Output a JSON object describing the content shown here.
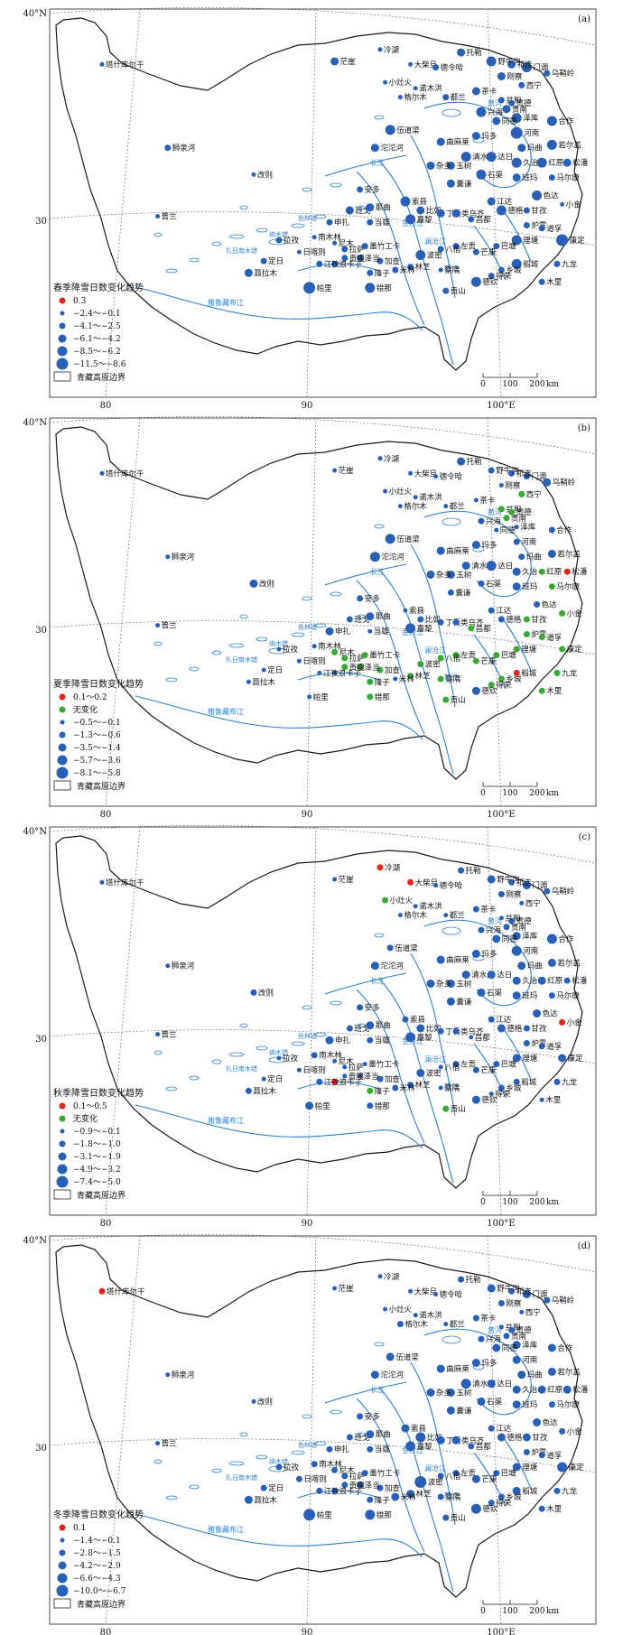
{
  "boundary_legend": "青藏高原边界",
  "scalebar": {
    "ticks": [
      "0",
      "100",
      "200"
    ],
    "unit": "km"
  },
  "colors": {
    "boundary": "#1a1a1a",
    "river": "#2f7fd0",
    "increase": "#e8221e",
    "nochange": "#39a935",
    "decrease": "#2a5fb8",
    "grid": "#333333"
  },
  "stations": {
    "塔什库尔干": [
      0.05,
      0.11
    ],
    "狮泉河": [
      0.18,
      0.39
    ],
    "改则": [
      0.35,
      0.48
    ],
    "普兰": [
      0.16,
      0.62
    ],
    "申扎": [
      0.5,
      0.64
    ],
    "班戈": [
      0.54,
      0.6
    ],
    "安多": [
      0.56,
      0.53
    ],
    "那曲": [
      0.58,
      0.59
    ],
    "当雄": [
      0.58,
      0.64
    ],
    "嘉黎": [
      0.66,
      0.63
    ],
    "索县": [
      0.65,
      0.57
    ],
    "比如": [
      0.68,
      0.6
    ],
    "丁青": [
      0.72,
      0.61
    ],
    "类乌齐": [
      0.75,
      0.61
    ],
    "昌都": [
      0.78,
      0.63
    ],
    "江达": [
      0.82,
      0.57
    ],
    "德格": [
      0.84,
      0.6
    ],
    "甘孜": [
      0.89,
      0.6
    ],
    "色达": [
      0.91,
      0.55
    ],
    "炉霍": [
      0.89,
      0.65
    ],
    "道孚": [
      0.92,
      0.66
    ],
    "康定": [
      0.96,
      0.7
    ],
    "九龙": [
      0.95,
      0.78
    ],
    "木里": [
      0.92,
      0.84
    ],
    "稻城": [
      0.87,
      0.78
    ],
    "理塘": [
      0.87,
      0.7
    ],
    "巴塘": [
      0.83,
      0.72
    ],
    "乡城": [
      0.84,
      0.8
    ],
    "得荣": [
      0.82,
      0.82
    ],
    "德钦": [
      0.79,
      0.84
    ],
    "贡山": [
      0.73,
      0.87
    ],
    "左贡": [
      0.75,
      0.72
    ],
    "芒康": [
      0.79,
      0.74
    ],
    "八宿": [
      0.72,
      0.73
    ],
    "波密": [
      0.68,
      0.75
    ],
    "察隅": [
      0.72,
      0.8
    ],
    "林芝": [
      0.66,
      0.79
    ],
    "米林": [
      0.63,
      0.8
    ],
    "加查": [
      0.6,
      0.77
    ],
    "隆子": [
      0.58,
      0.81
    ],
    "错那": [
      0.58,
      0.86
    ],
    "泽当": [
      0.56,
      0.76
    ],
    "贡嘎": [
      0.53,
      0.76
    ],
    "浪卡子": [
      0.51,
      0.78
    ],
    "江孜": [
      0.48,
      0.78
    ],
    "日喀则": [
      0.44,
      0.74
    ],
    "拉孜": [
      0.4,
      0.7
    ],
    "南木林": [
      0.47,
      0.69
    ],
    "尼木": [
      0.51,
      0.71
    ],
    "拉萨": [
      0.53,
      0.73
    ],
    "墨竹工卡": [
      0.57,
      0.72
    ],
    "定日": [
      0.37,
      0.77
    ],
    "聂拉木": [
      0.34,
      0.81
    ],
    "帕里": [
      0.46,
      0.86
    ],
    "沱沱河": [
      0.59,
      0.39
    ],
    "伍道梁": [
      0.62,
      0.33
    ],
    "曲麻莱": [
      0.72,
      0.37
    ],
    "玉树": [
      0.74,
      0.45
    ],
    "杂多": [
      0.7,
      0.45
    ],
    "囊谦": [
      0.74,
      0.51
    ],
    "清水河": [
      0.77,
      0.42
    ],
    "玛多": [
      0.79,
      0.35
    ],
    "达日": [
      0.82,
      0.42
    ],
    "班玛": [
      0.87,
      0.49
    ],
    "久治": [
      0.87,
      0.44
    ],
    "玛曲": [
      0.88,
      0.39
    ],
    "河南": [
      0.87,
      0.34
    ],
    "泽库": [
      0.87,
      0.29
    ],
    "同德": [
      0.83,
      0.3
    ],
    "兴海": [
      0.8,
      0.27
    ],
    "贵南": [
      0.85,
      0.26
    ],
    "共和": [
      0.84,
      0.23
    ],
    "贵德": [
      0.86,
      0.24
    ],
    "西宁": [
      0.88,
      0.18
    ],
    "门源": [
      0.89,
      0.12
    ],
    "祁连": [
      0.86,
      0.11
    ],
    "野牛沟": [
      0.82,
      0.1
    ],
    "托勒": [
      0.76,
      0.07
    ],
    "冷湖": [
      0.6,
      0.06
    ],
    "茫崖": [
      0.51,
      0.1
    ],
    "大柴旦": [
      0.66,
      0.11
    ],
    "德令哈": [
      0.71,
      0.12
    ],
    "小灶火": [
      0.61,
      0.17
    ],
    "诺木洪": [
      0.67,
      0.19
    ],
    "格尔木": [
      0.64,
      0.22
    ],
    "都兰": [
      0.73,
      0.22
    ],
    "茶卡": [
      0.79,
      0.2
    ],
    "刚察": [
      0.84,
      0.15
    ],
    "乌鞘岭": [
      0.93,
      0.14
    ],
    "合作": [
      0.94,
      0.3
    ],
    "若尔盖": [
      0.94,
      0.38
    ],
    "红原": [
      0.92,
      0.44
    ],
    "松潘": [
      0.97,
      0.44
    ],
    "马尔康": [
      0.94,
      0.49
    ],
    "小金": [
      0.96,
      0.58
    ],
    "石渠": [
      0.8,
      0.48
    ]
  },
  "panels": [
    {
      "letter": "(a)",
      "legend_title": "春季降雪日数变化趋势",
      "legend_items": [
        {
          "label": "0.3",
          "color": "increase",
          "size": 3.5
        },
        {
          "label": "−2.4～−0.1",
          "color": "decrease",
          "size": 2.5
        },
        {
          "label": "−4.1～−2.5",
          "color": "decrease",
          "size": 3.5
        },
        {
          "label": "−6.1～−4.2",
          "color": "decrease",
          "size": 4.5
        },
        {
          "label": "−8.5～−6.2",
          "color": "decrease",
          "size": 5.5
        },
        {
          "label": "−11.5～−8.6",
          "color": "decrease",
          "size": 6.5
        }
      ]
    },
    {
      "letter": "(b)",
      "legend_title": "夏季降雪日数变化趋势",
      "legend_items": [
        {
          "label": "0.1～0.2",
          "color": "increase",
          "size": 3.5
        },
        {
          "label": "无变化",
          "color": "nochange",
          "size": 3.5
        },
        {
          "label": "−0.5～−0.1",
          "color": "decrease",
          "size": 2.5
        },
        {
          "label": "−1.3～−0.6",
          "color": "decrease",
          "size": 3.5
        },
        {
          "label": "−3.5～−1.4",
          "color": "decrease",
          "size": 4.5
        },
        {
          "label": "−5.7～−3.6",
          "color": "decrease",
          "size": 5.5
        },
        {
          "label": "−8.1～−5.8",
          "color": "decrease",
          "size": 6.5
        }
      ]
    },
    {
      "letter": "(c)",
      "legend_title": "秋季降雪日数变化趋势",
      "legend_items": [
        {
          "label": "0.1～0.5",
          "color": "increase",
          "size": 3.5
        },
        {
          "label": "无变化",
          "color": "nochange",
          "size": 3.5
        },
        {
          "label": "−0.9～−0.1",
          "color": "decrease",
          "size": 2.5
        },
        {
          "label": "−1.8～−1.0",
          "color": "decrease",
          "size": 3.5
        },
        {
          "label": "−3.1～−1.9",
          "color": "decrease",
          "size": 4.5
        },
        {
          "label": "−4.9～−3.2",
          "color": "decrease",
          "size": 5.5
        },
        {
          "label": "−7.4～−5.0",
          "color": "decrease",
          "size": 6.5
        }
      ]
    },
    {
      "letter": "(d)",
      "legend_title": "冬季降雪日数变化趋势",
      "legend_items": [
        {
          "label": "0.1",
          "color": "increase",
          "size": 3.5
        },
        {
          "label": "−1.4～−0.1",
          "color": "decrease",
          "size": 2.5
        },
        {
          "label": "−2.8～−1.5",
          "color": "decrease",
          "size": 3.5
        },
        {
          "label": "−4.2～−2.9",
          "color": "decrease",
          "size": 4.5
        },
        {
          "label": "−6.6～−4.3",
          "color": "decrease",
          "size": 5.5
        },
        {
          "label": "−10.0～−6.7",
          "color": "decrease",
          "size": 6.5
        }
      ]
    }
  ],
  "axis_labels": {
    "lat40": "40°N",
    "lat30": "30",
    "lon80": "80",
    "lon90": "90",
    "lon100": "100°E"
  },
  "lake_labels": [
    "纳木错",
    "扎日南木错",
    "色林错"
  ],
  "river_labels": [
    "雅鲁藏布江",
    "澜沧江",
    "金沙江",
    "怒江",
    "黄河",
    "长江"
  ]
}
